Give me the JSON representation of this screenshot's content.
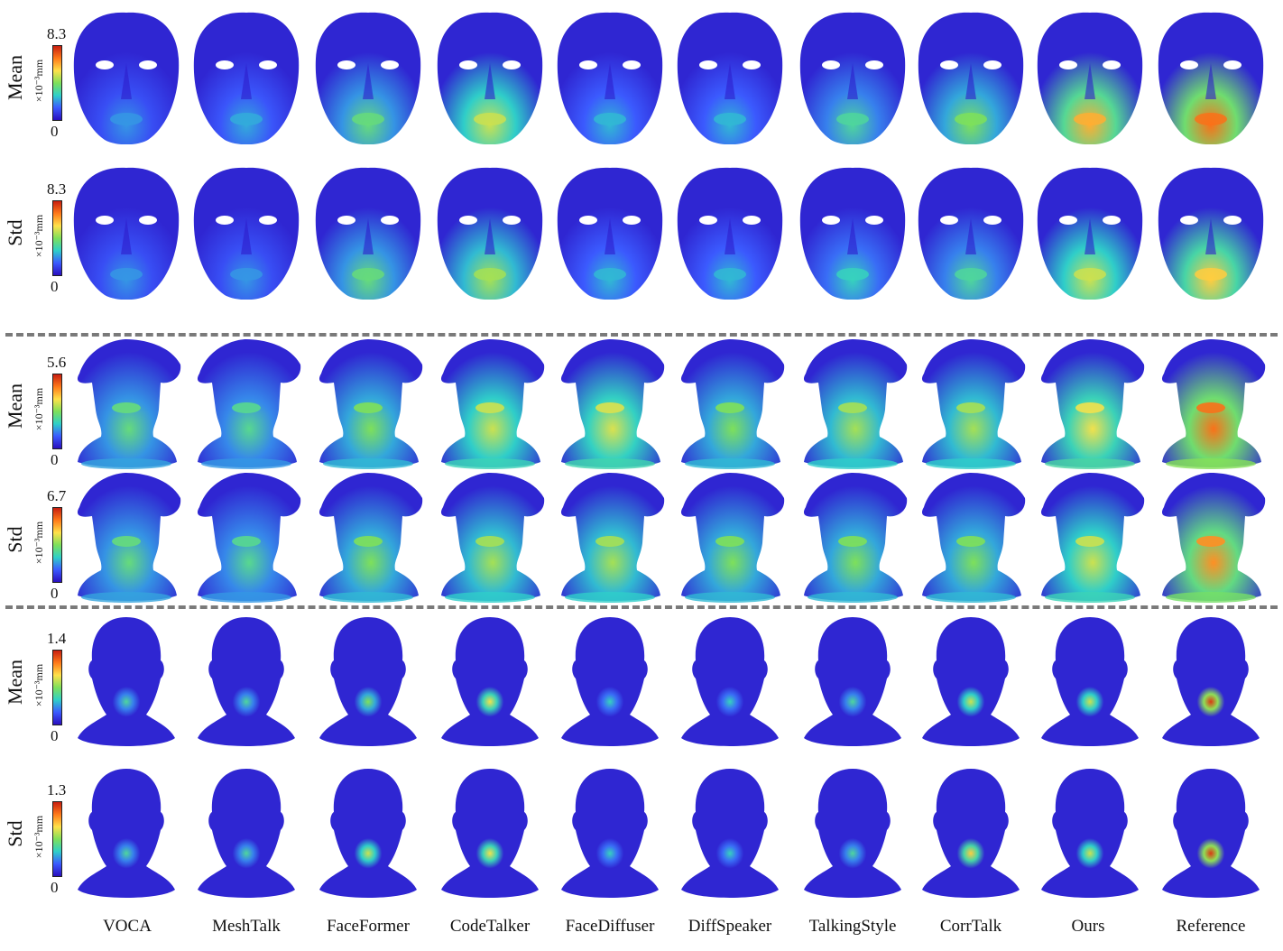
{
  "columns": [
    "VOCA",
    "MeshTalk",
    "FaceFormer",
    "CodeTalker",
    "FaceDiffuser",
    "DiffSpeaker",
    "TalkingStyle",
    "CorrTalk",
    "Ours",
    "Reference"
  ],
  "colorbar_unit": "×10⁻³mm",
  "colorbar_stops": [
    "#2a0fbf",
    "#3b5bff",
    "#2fd0c8",
    "#7ee05a",
    "#ffe14a",
    "#ff7a1a",
    "#c81e10"
  ],
  "blocks": [
    {
      "type": "mask-face",
      "rows": [
        {
          "label": "Mean",
          "max": "8.3",
          "min": "0",
          "intensity": [
            0.25,
            0.28,
            0.45,
            0.6,
            0.3,
            0.3,
            0.4,
            0.5,
            0.75,
            0.85
          ]
        },
        {
          "label": "Std",
          "max": "8.3",
          "min": "0",
          "intensity": [
            0.25,
            0.25,
            0.45,
            0.55,
            0.3,
            0.3,
            0.35,
            0.4,
            0.6,
            0.7
          ]
        }
      ]
    },
    {
      "type": "bust",
      "rows": [
        {
          "label": "Mean",
          "max": "5.6",
          "min": "0",
          "intensity": [
            0.45,
            0.42,
            0.5,
            0.6,
            0.62,
            0.5,
            0.55,
            0.55,
            0.65,
            0.85
          ]
        },
        {
          "label": "Std",
          "max": "6.7",
          "min": "0",
          "intensity": [
            0.45,
            0.42,
            0.5,
            0.55,
            0.55,
            0.5,
            0.5,
            0.5,
            0.6,
            0.8
          ]
        }
      ]
    },
    {
      "type": "head",
      "rows": [
        {
          "label": "Mean",
          "max": "1.4",
          "min": "0",
          "intensity": [
            0.4,
            0.4,
            0.5,
            0.65,
            0.35,
            0.35,
            0.4,
            0.6,
            0.6,
            0.95
          ]
        },
        {
          "label": "Std",
          "max": "1.3",
          "min": "0",
          "intensity": [
            0.4,
            0.4,
            0.6,
            0.65,
            0.35,
            0.35,
            0.4,
            0.7,
            0.6,
            0.95
          ]
        }
      ]
    }
  ]
}
